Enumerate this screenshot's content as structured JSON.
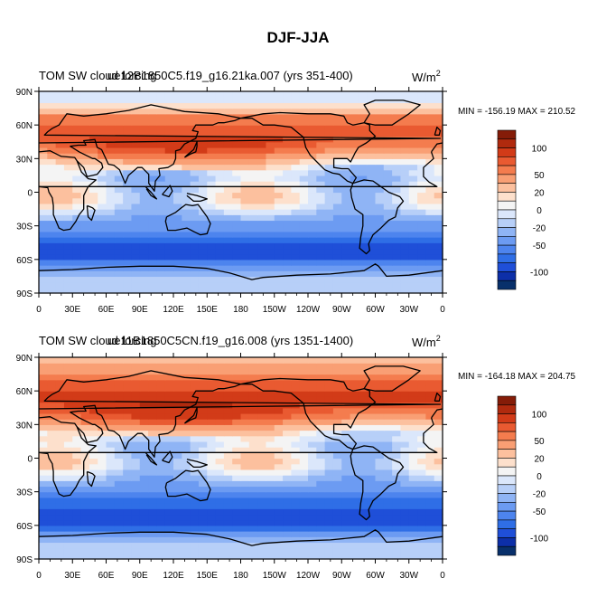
{
  "figure": {
    "title": "DJF-JJA"
  },
  "colorbar": {
    "levels": [
      -120,
      -110,
      -100,
      -80,
      -65,
      -50,
      -35,
      -20,
      -10,
      0,
      10,
      20,
      35,
      50,
      65,
      80,
      100,
      110,
      120
    ],
    "colors": [
      "#08306b",
      "#0d2fa8",
      "#1f4fd8",
      "#2f6ee6",
      "#4d84ee",
      "#6c9bf2",
      "#8fb4f5",
      "#b7cff8",
      "#dbe7fb",
      "#f4f4f4",
      "#fde0cc",
      "#fcc09e",
      "#f99f74",
      "#f47c4e",
      "#e95a31",
      "#d23b18",
      "#b02a0e",
      "#851c08"
    ],
    "tick_labels": [
      "100",
      "50",
      "20",
      "0",
      "-20",
      "-50",
      "-100"
    ],
    "tick_values": [
      100,
      50,
      20,
      0,
      -20,
      -50,
      -100
    ]
  },
  "chart_data": [
    {
      "type": "heatmap",
      "title": "TOM SW cloud forcing",
      "title_overlap": "ue12B1850C5.f19_g16.21ka.007 (yrs 351-400)",
      "units": "W/m",
      "units_sup": "2",
      "stats": "MIN = -156.19 MAX = 210.52",
      "x_ticks": [
        "0",
        "30E",
        "60E",
        "90E",
        "120E",
        "150E",
        "180",
        "150W",
        "120W",
        "90W",
        "60W",
        "30W",
        "0"
      ],
      "y_ticks": [
        "90N",
        "60N",
        "30N",
        "0",
        "30S",
        "60S",
        "90S"
      ],
      "xlim": [
        0,
        360
      ],
      "ylim": [
        -90,
        90
      ],
      "zonal_profile": [
        [
          -90,
          -15
        ],
        [
          -75,
          -20
        ],
        [
          -65,
          -55
        ],
        [
          -55,
          -95
        ],
        [
          -45,
          -80
        ],
        [
          -35,
          -55
        ],
        [
          -25,
          -35
        ],
        [
          -15,
          -10
        ],
        [
          -5,
          5
        ],
        [
          5,
          -5
        ],
        [
          15,
          -20
        ],
        [
          25,
          15
        ],
        [
          35,
          55
        ],
        [
          45,
          80
        ],
        [
          55,
          75
        ],
        [
          65,
          60
        ],
        [
          75,
          25
        ],
        [
          85,
          -10
        ],
        [
          90,
          -10
        ]
      ]
    },
    {
      "type": "heatmap",
      "title": "TOM SW cloud forcing",
      "title_overlap": "ue11B1850C5CN.f19_g16.008 (yrs 1351-1400)",
      "units": "W/m",
      "units_sup": "2",
      "stats": "MIN = -164.18 MAX = 204.75",
      "x_ticks": [
        "0",
        "30E",
        "60E",
        "90E",
        "120E",
        "150E",
        "180",
        "150W",
        "120W",
        "90W",
        "60W",
        "30W",
        "0"
      ],
      "y_ticks": [
        "90N",
        "60N",
        "30N",
        "0",
        "30S",
        "60S",
        "90S"
      ],
      "xlim": [
        0,
        360
      ],
      "ylim": [
        -90,
        90
      ],
      "zonal_profile": [
        [
          -90,
          -15
        ],
        [
          -75,
          -20
        ],
        [
          -65,
          -60
        ],
        [
          -55,
          -100
        ],
        [
          -45,
          -85
        ],
        [
          -35,
          -60
        ],
        [
          -25,
          -40
        ],
        [
          -15,
          -15
        ],
        [
          -5,
          5
        ],
        [
          5,
          -5
        ],
        [
          15,
          -10
        ],
        [
          25,
          20
        ],
        [
          35,
          60
        ],
        [
          45,
          85
        ],
        [
          55,
          85
        ],
        [
          65,
          75
        ],
        [
          75,
          55
        ],
        [
          85,
          30
        ],
        [
          90,
          25
        ]
      ]
    }
  ]
}
